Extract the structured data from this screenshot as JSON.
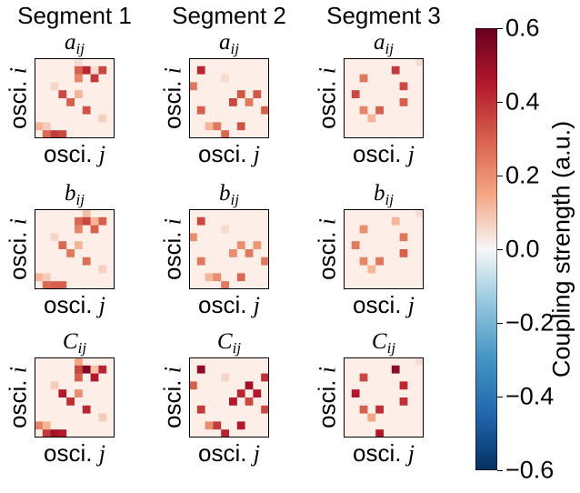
{
  "chart_data": {
    "type": "heatmap",
    "segments": [
      "Segment 1",
      "Segment 2",
      "Segment 3"
    ],
    "rows": [
      {
        "symbol": "a",
        "subscript": "ij"
      },
      {
        "symbol": "b",
        "subscript": "ij"
      },
      {
        "symbol": "C",
        "subscript": "ij"
      }
    ],
    "xlabel": {
      "text": "osci. ",
      "var": "j"
    },
    "ylabel": {
      "text": "osci. ",
      "var": "i"
    },
    "colorbar": {
      "label": "Coupling strength (a.u.)",
      "range": [
        -0.6,
        0.6
      ],
      "ticks": [
        "0.6",
        "0.4",
        "0.2",
        "0.0",
        "−0.2",
        "−0.4",
        "−0.6"
      ],
      "tick_values": [
        0.6,
        0.4,
        0.2,
        0.0,
        -0.2,
        -0.4,
        -0.6
      ],
      "colormap": "RdBu_r"
    },
    "matrix_size": 10,
    "panels": [
      {
        "segment": 1,
        "row": "a",
        "cells": [
          [
            0,
            0,
            0,
            0,
            0,
            0.05,
            0,
            0,
            0,
            0
          ],
          [
            0,
            0,
            0,
            0,
            0,
            0.3,
            0.42,
            0.05,
            0.35,
            0
          ],
          [
            0,
            0,
            0,
            0,
            0,
            0.22,
            0,
            0.38,
            0,
            0
          ],
          [
            0,
            0,
            0.06,
            0,
            0,
            0,
            0,
            0,
            0,
            0
          ],
          [
            0,
            0,
            0,
            0.35,
            0,
            0.12,
            0,
            0,
            0,
            0
          ],
          [
            0,
            0,
            0,
            0,
            0.3,
            0,
            0,
            0,
            0,
            0
          ],
          [
            0,
            0,
            0,
            0,
            0,
            0,
            0.33,
            0,
            0,
            0
          ],
          [
            0,
            0,
            0,
            0,
            0,
            0,
            0,
            0,
            0.07,
            0
          ],
          [
            0.12,
            0.08,
            0,
            0,
            0,
            0,
            0,
            0,
            0,
            0
          ],
          [
            0,
            0.28,
            0.38,
            0.35,
            0,
            0,
            0,
            0,
            0,
            0
          ]
        ]
      },
      {
        "segment": 2,
        "row": "a",
        "cells": [
          [
            0,
            0,
            0,
            0,
            0,
            0,
            0,
            0,
            0,
            0
          ],
          [
            0,
            0.42,
            0,
            0,
            0,
            0,
            0,
            0,
            0,
            0
          ],
          [
            0,
            0,
            0,
            0,
            0.05,
            0,
            0,
            0,
            0,
            0
          ],
          [
            0.25,
            0,
            0,
            0,
            0,
            0,
            0,
            0,
            0,
            0
          ],
          [
            0,
            0,
            0,
            0,
            0,
            0,
            0.32,
            0,
            0.32,
            0
          ],
          [
            0,
            0,
            0,
            0,
            0,
            0.35,
            0,
            0.25,
            0,
            0
          ],
          [
            0,
            0.3,
            0,
            0,
            0,
            0,
            0,
            0,
            0,
            0.3
          ],
          [
            0,
            0,
            0,
            0,
            0,
            0,
            0,
            0,
            0,
            0
          ],
          [
            0,
            0,
            0.12,
            0.25,
            0,
            0,
            0.33,
            0,
            0,
            0
          ],
          [
            0,
            0,
            0,
            0,
            0.28,
            0,
            0,
            0,
            0,
            0
          ]
        ]
      },
      {
        "segment": 3,
        "row": "a",
        "cells": [
          [
            0,
            0,
            0,
            0,
            0,
            0,
            0,
            0,
            0,
            0.05
          ],
          [
            0,
            0,
            0,
            0,
            0,
            0,
            0.38,
            0,
            0,
            0
          ],
          [
            0,
            0,
            0.25,
            0,
            0,
            0,
            0,
            0,
            0,
            0
          ],
          [
            0,
            0,
            0,
            0,
            0,
            0,
            0,
            0.35,
            0,
            0
          ],
          [
            0,
            0.35,
            0,
            0,
            0,
            0,
            0,
            0,
            0,
            0
          ],
          [
            0,
            0,
            0,
            0,
            0,
            0,
            0,
            0.3,
            0,
            0
          ],
          [
            0,
            0,
            0.22,
            0,
            0.3,
            0,
            0,
            0,
            0,
            0
          ],
          [
            0,
            0,
            0,
            0.12,
            0,
            0,
            0,
            0,
            0,
            0
          ],
          [
            0,
            0,
            0,
            0,
            0,
            0,
            0,
            0,
            0,
            0
          ],
          [
            0,
            0,
            0,
            0,
            0,
            0,
            0,
            0,
            0,
            0
          ]
        ]
      },
      {
        "segment": 1,
        "row": "b",
        "cells": [
          [
            0,
            0,
            0,
            0,
            0,
            0,
            0.1,
            0,
            0,
            0
          ],
          [
            0,
            0,
            0,
            0,
            0,
            0.28,
            0.35,
            0.12,
            0.3,
            0
          ],
          [
            0,
            0,
            0,
            0,
            0,
            0.22,
            0,
            0.3,
            0,
            0
          ],
          [
            0,
            0,
            0.06,
            0,
            0,
            0,
            0,
            0,
            0,
            0
          ],
          [
            0,
            0,
            0,
            0.28,
            0,
            0.12,
            0,
            0,
            0,
            0
          ],
          [
            0,
            0,
            0,
            0,
            0.25,
            0,
            0,
            0,
            0,
            0
          ],
          [
            0,
            0,
            0,
            0,
            0,
            0,
            0.27,
            0,
            0,
            0
          ],
          [
            0,
            0,
            0,
            0,
            0,
            0,
            0,
            0,
            0.07,
            0
          ],
          [
            0.12,
            0.08,
            0,
            0,
            0,
            0,
            0,
            0,
            0,
            0
          ],
          [
            0,
            0.28,
            0.3,
            0.3,
            0,
            0,
            0,
            0,
            0,
            0
          ]
        ]
      },
      {
        "segment": 2,
        "row": "b",
        "cells": [
          [
            0,
            0,
            0,
            0,
            0,
            0,
            0,
            0,
            0,
            0
          ],
          [
            0,
            0.35,
            0,
            0,
            0,
            0,
            0,
            0,
            0,
            0
          ],
          [
            0,
            0,
            0,
            0,
            0.05,
            0,
            0,
            0,
            0,
            0
          ],
          [
            0.2,
            0,
            0,
            0,
            0,
            0,
            0,
            0,
            0,
            0
          ],
          [
            0,
            0,
            0,
            0,
            0,
            0,
            0.2,
            0,
            0.18,
            0
          ],
          [
            0,
            0,
            0,
            0,
            0,
            0.2,
            0,
            0.25,
            0,
            0
          ],
          [
            0,
            0.25,
            0,
            0,
            0,
            0,
            0,
            0,
            0,
            0.25
          ],
          [
            0,
            0,
            0,
            0,
            0,
            0,
            0,
            0,
            0,
            0
          ],
          [
            0,
            0,
            0.12,
            0.2,
            0,
            0,
            0.28,
            0,
            0,
            0
          ],
          [
            0,
            0,
            0,
            0,
            0.25,
            0,
            0,
            0,
            0,
            0
          ]
        ]
      },
      {
        "segment": 3,
        "row": "b",
        "cells": [
          [
            0,
            0,
            0,
            0,
            0,
            0,
            0,
            0,
            0,
            0.05
          ],
          [
            0,
            0,
            0,
            0,
            0,
            0,
            0.12,
            0,
            0,
            0
          ],
          [
            0,
            0,
            0.2,
            0,
            0,
            0,
            0,
            0,
            0,
            0
          ],
          [
            0,
            0,
            0,
            0,
            0,
            0,
            0,
            0.25,
            0,
            0
          ],
          [
            0,
            0.25,
            0,
            0,
            0,
            0,
            0,
            0,
            0,
            0
          ],
          [
            0,
            0,
            0,
            0,
            0,
            0,
            0,
            0.3,
            0,
            0
          ],
          [
            0,
            0,
            0.22,
            0,
            0.25,
            0,
            0,
            0,
            0,
            0
          ],
          [
            0,
            0,
            0,
            0.12,
            0,
            0,
            0,
            0,
            0,
            0
          ],
          [
            0,
            0,
            0,
            0,
            0,
            0,
            0,
            0,
            0,
            0
          ],
          [
            0,
            0,
            0,
            0,
            0,
            0,
            0,
            0,
            0,
            0
          ]
        ]
      },
      {
        "segment": 1,
        "row": "C",
        "cells": [
          [
            0,
            0,
            0,
            0,
            0,
            0.15,
            0,
            0,
            0,
            0
          ],
          [
            0,
            0,
            0,
            0,
            0,
            0.35,
            0.55,
            0.1,
            0.42,
            0
          ],
          [
            0,
            0,
            0,
            0,
            0,
            0.3,
            0,
            0.45,
            0,
            0
          ],
          [
            0,
            0,
            0.08,
            0,
            0,
            0,
            0,
            0,
            0,
            0
          ],
          [
            0,
            0,
            0,
            0.45,
            0,
            0.2,
            0,
            0,
            0,
            0
          ],
          [
            0,
            0,
            0,
            0,
            0.4,
            0,
            0,
            0,
            0,
            0
          ],
          [
            0,
            0,
            0,
            0,
            0,
            0,
            0.42,
            0,
            0,
            0
          ],
          [
            0,
            0,
            0,
            0,
            0,
            0,
            0,
            0,
            0.08,
            0
          ],
          [
            0.22,
            0.12,
            0,
            0,
            0,
            0,
            0,
            0,
            0,
            0
          ],
          [
            0,
            0.38,
            0.48,
            0.45,
            0,
            0,
            0,
            0,
            0,
            0
          ]
        ]
      },
      {
        "segment": 2,
        "row": "C",
        "cells": [
          [
            0,
            0,
            0,
            0,
            0,
            0,
            0,
            0,
            0,
            0
          ],
          [
            0,
            0.52,
            0,
            0,
            0,
            0,
            0,
            0,
            0,
            0
          ],
          [
            0,
            0,
            0,
            0,
            0.06,
            0,
            0,
            0,
            0,
            0.4
          ],
          [
            0.3,
            0,
            0,
            0,
            0,
            0,
            0,
            0.48,
            0,
            0
          ],
          [
            0,
            0,
            0,
            0,
            0,
            0,
            0.42,
            0,
            0.45,
            0
          ],
          [
            0,
            0,
            0,
            0,
            0,
            0.45,
            0,
            0.35,
            0,
            0
          ],
          [
            0,
            0.38,
            0,
            0,
            0,
            0,
            0,
            0,
            0,
            0.35
          ],
          [
            0,
            0,
            0,
            0,
            0,
            0,
            0,
            0,
            0,
            0
          ],
          [
            0,
            0,
            0.2,
            0.38,
            0,
            0,
            0.45,
            0,
            0,
            0
          ],
          [
            0,
            0,
            0,
            0,
            0.42,
            0,
            0,
            0,
            0,
            0
          ]
        ]
      },
      {
        "segment": 3,
        "row": "C",
        "cells": [
          [
            0,
            0,
            0,
            0,
            0,
            0,
            0,
            0,
            0,
            0.05
          ],
          [
            0,
            0,
            0,
            0,
            0,
            0,
            0.52,
            0,
            0,
            0
          ],
          [
            0,
            0,
            0.35,
            0,
            0,
            0,
            0,
            0,
            0,
            0
          ],
          [
            0,
            0,
            0,
            0,
            0,
            0,
            0,
            0.42,
            0,
            0
          ],
          [
            0,
            0.45,
            0,
            0,
            0,
            0,
            0,
            0,
            0,
            0
          ],
          [
            0,
            0,
            0,
            0,
            0,
            0,
            0,
            0.4,
            0,
            0
          ],
          [
            0,
            0,
            0.3,
            0,
            0.4,
            0,
            0,
            0,
            0,
            0
          ],
          [
            0,
            0,
            0,
            0.15,
            0,
            0,
            0,
            0,
            0,
            0
          ],
          [
            0,
            0,
            0,
            0,
            0,
            0,
            0,
            0,
            0,
            0
          ],
          [
            0,
            0,
            0,
            0,
            0.45,
            0,
            0,
            0,
            0,
            0
          ]
        ]
      }
    ]
  }
}
